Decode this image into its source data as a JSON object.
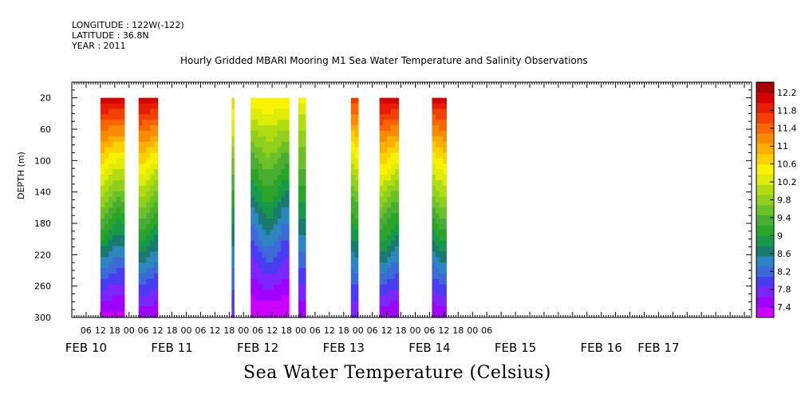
{
  "header": {
    "longitude": "LONGITUDE : 122W(-122)",
    "latitude": "LATITUDE : 36.8N",
    "year": "YEAR : 2011"
  },
  "chart_data": {
    "type": "heatmap",
    "title": "Hourly Gridded MBARI Mooring M1 Sea Water Temperature and Salinity Observations",
    "xlabel": "Sea Water Temperature (Celsius)",
    "ylabel": "DEPTH (m)",
    "x_axis": {
      "range_hours": [
        0,
        285
      ],
      "hour_ticks": [
        "06",
        "12",
        "18",
        "00",
        "06",
        "12",
        "18",
        "00",
        "06",
        "12",
        "18",
        "00",
        "06",
        "12",
        "18",
        "00",
        "06",
        "12",
        "18",
        "00",
        "06",
        "12",
        "18",
        "00",
        "06",
        "12",
        "18",
        "00",
        "06"
      ],
      "day_labels": [
        {
          "label": "FEB 10",
          "hour": 6
        },
        {
          "label": "FEB 11",
          "hour": 42
        },
        {
          "label": "FEB 12",
          "hour": 78
        },
        {
          "label": "FEB 13",
          "hour": 114
        },
        {
          "label": "FEB 14",
          "hour": 150
        },
        {
          "label": "FEB 15",
          "hour": 186
        },
        {
          "label": "FEB 16",
          "hour": 222
        },
        {
          "label": "FEB 17",
          "hour": 246
        }
      ]
    },
    "y_axis": {
      "range": [
        300,
        0
      ],
      "ticks": [
        20,
        60,
        100,
        140,
        180,
        220,
        260,
        300
      ],
      "data_range": [
        20,
        300
      ]
    },
    "colorbar": {
      "levels": [
        7.4,
        7.8,
        8.2,
        8.6,
        9,
        9.4,
        9.8,
        10.2,
        10.6,
        11,
        11.4,
        11.8,
        12.2
      ],
      "labels": [
        "7.4",
        "7.8",
        "8.2",
        "8.6",
        "9",
        "9.4",
        "9.8",
        "10.2",
        "10.6",
        "11",
        "11.4",
        "11.8",
        "12.2"
      ],
      "colors": [
        "#cc00ff",
        "#a000ff",
        "#7d25ff",
        "#4a3cf2",
        "#3c6ad9",
        "#2d86c0",
        "#1a7a70",
        "#18994a",
        "#2aa52a",
        "#48ad32",
        "#6cc028",
        "#90cf1c",
        "#b2dc12",
        "#dfec0a",
        "#f7f200",
        "#fad200",
        "#fbb000",
        "#f98b00",
        "#f76600",
        "#f24000",
        "#e81c00",
        "#d40000",
        "#a80000"
      ]
    },
    "segments": [
      {
        "start_hour": 12,
        "end_hour": 22,
        "surface_temp": 12.0,
        "bottom_temp": 7.5
      },
      {
        "start_hour": 28,
        "end_hour": 36,
        "surface_temp": 12.0,
        "bottom_temp": 7.6
      },
      {
        "start_hour": 67,
        "end_hour": 68,
        "surface_temp": 10.8,
        "bottom_temp": 8.0
      },
      {
        "start_hour": 75,
        "end_hour": 91,
        "surface_temp": 10.6,
        "bottom_temp": 7.4
      },
      {
        "start_hour": 95,
        "end_hour": 98,
        "surface_temp": 10.4,
        "bottom_temp": 7.6
      },
      {
        "start_hour": 117,
        "end_hour": 120,
        "surface_temp": 11.6,
        "bottom_temp": 7.8
      },
      {
        "start_hour": 129,
        "end_hour": 137,
        "surface_temp": 12.0,
        "bottom_temp": 7.6
      },
      {
        "start_hour": 151,
        "end_hour": 157,
        "surface_temp": 11.9,
        "bottom_temp": 7.6
      }
    ]
  }
}
